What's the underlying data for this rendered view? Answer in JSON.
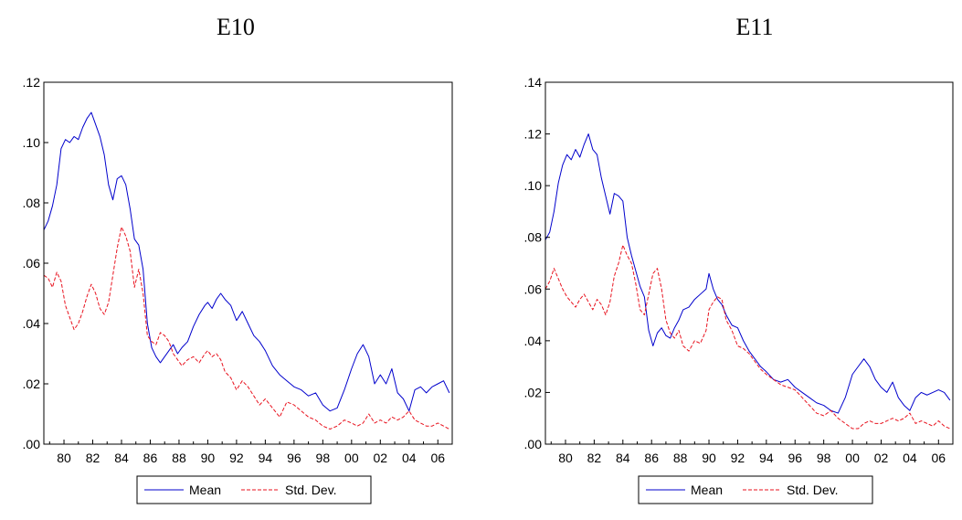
{
  "colors": {
    "mean": "#0000cc",
    "std": "#e8121e",
    "axis": "#000000",
    "background": "#ffffff"
  },
  "chart_data": [
    {
      "type": "line",
      "title": "E10",
      "xlabel": "",
      "ylabel": "",
      "xlim": [
        1978.6,
        2007.0
      ],
      "ylim": [
        0.0,
        0.12
      ],
      "yticks": [
        0.0,
        0.02,
        0.04,
        0.06,
        0.08,
        0.1,
        0.12
      ],
      "ytick_labels": [
        ".00",
        ".02",
        ".04",
        ".06",
        ".08",
        ".10",
        ".12"
      ],
      "xticks": [
        1980,
        1982,
        1984,
        1986,
        1988,
        1990,
        1992,
        1994,
        1996,
        1998,
        2000,
        2002,
        2004,
        2006
      ],
      "xtick_labels": [
        "80",
        "82",
        "84",
        "86",
        "88",
        "90",
        "92",
        "94",
        "96",
        "98",
        "00",
        "02",
        "04",
        "06"
      ],
      "grid": false,
      "legend_position": "bottom-center",
      "series": [
        {
          "name": "Mean",
          "style": "solid",
          "x": [
            1978.6,
            1978.9,
            1979.2,
            1979.5,
            1979.8,
            1980.1,
            1980.4,
            1980.7,
            1981.0,
            1981.3,
            1981.6,
            1981.9,
            1982.2,
            1982.5,
            1982.8,
            1983.1,
            1983.4,
            1983.7,
            1984.0,
            1984.3,
            1984.6,
            1984.9,
            1985.2,
            1985.5,
            1985.8,
            1986.1,
            1986.4,
            1986.7,
            1987.0,
            1987.3,
            1987.6,
            1987.9,
            1988.2,
            1988.6,
            1989.0,
            1989.4,
            1989.8,
            1990.0,
            1990.3,
            1990.6,
            1990.9,
            1991.2,
            1991.6,
            1992.0,
            1992.4,
            1992.8,
            1993.2,
            1993.6,
            1994.0,
            1994.5,
            1995.0,
            1995.5,
            1996.0,
            1996.5,
            1997.0,
            1997.5,
            1998.0,
            1998.5,
            1999.0,
            1999.5,
            2000.0,
            2000.4,
            2000.8,
            2001.2,
            2001.6,
            2002.0,
            2002.4,
            2002.8,
            2003.2,
            2003.6,
            2004.0,
            2004.4,
            2004.8,
            2005.2,
            2005.6,
            2006.0,
            2006.4,
            2006.8
          ],
          "values": [
            0.071,
            0.074,
            0.079,
            0.086,
            0.098,
            0.101,
            0.1,
            0.102,
            0.101,
            0.105,
            0.108,
            0.11,
            0.106,
            0.102,
            0.096,
            0.086,
            0.081,
            0.088,
            0.089,
            0.086,
            0.078,
            0.068,
            0.066,
            0.058,
            0.04,
            0.032,
            0.029,
            0.027,
            0.029,
            0.031,
            0.033,
            0.03,
            0.032,
            0.034,
            0.039,
            0.043,
            0.046,
            0.047,
            0.045,
            0.048,
            0.05,
            0.048,
            0.046,
            0.041,
            0.044,
            0.04,
            0.036,
            0.034,
            0.031,
            0.026,
            0.023,
            0.021,
            0.019,
            0.018,
            0.016,
            0.017,
            0.013,
            0.011,
            0.012,
            0.018,
            0.025,
            0.03,
            0.033,
            0.029,
            0.02,
            0.023,
            0.02,
            0.025,
            0.017,
            0.015,
            0.011,
            0.018,
            0.019,
            0.017,
            0.019,
            0.02,
            0.021,
            0.017
          ]
        },
        {
          "name": "Std. Dev.",
          "style": "dashed",
          "x": [
            1978.6,
            1978.9,
            1979.2,
            1979.5,
            1979.8,
            1980.1,
            1980.4,
            1980.7,
            1981.0,
            1981.3,
            1981.6,
            1981.9,
            1982.2,
            1982.5,
            1982.8,
            1983.1,
            1983.4,
            1983.7,
            1984.0,
            1984.3,
            1984.6,
            1984.9,
            1985.2,
            1985.5,
            1985.8,
            1986.1,
            1986.4,
            1986.7,
            1987.0,
            1987.3,
            1987.6,
            1987.9,
            1988.2,
            1988.6,
            1989.0,
            1989.4,
            1989.8,
            1990.0,
            1990.3,
            1990.6,
            1990.9,
            1991.2,
            1991.6,
            1992.0,
            1992.4,
            1992.8,
            1993.2,
            1993.6,
            1994.0,
            1994.5,
            1995.0,
            1995.5,
            1996.0,
            1996.5,
            1997.0,
            1997.5,
            1998.0,
            1998.5,
            1999.0,
            1999.5,
            2000.0,
            2000.4,
            2000.8,
            2001.2,
            2001.6,
            2002.0,
            2002.4,
            2002.8,
            2003.2,
            2003.6,
            2004.0,
            2004.4,
            2004.8,
            2005.2,
            2005.6,
            2006.0,
            2006.4,
            2006.8
          ],
          "values": [
            0.056,
            0.055,
            0.052,
            0.057,
            0.054,
            0.046,
            0.042,
            0.038,
            0.04,
            0.044,
            0.049,
            0.053,
            0.05,
            0.045,
            0.043,
            0.047,
            0.056,
            0.065,
            0.072,
            0.069,
            0.064,
            0.052,
            0.058,
            0.05,
            0.036,
            0.034,
            0.033,
            0.037,
            0.036,
            0.034,
            0.03,
            0.028,
            0.026,
            0.028,
            0.029,
            0.027,
            0.03,
            0.031,
            0.029,
            0.03,
            0.028,
            0.024,
            0.022,
            0.018,
            0.021,
            0.019,
            0.016,
            0.013,
            0.015,
            0.012,
            0.009,
            0.014,
            0.013,
            0.011,
            0.009,
            0.008,
            0.006,
            0.005,
            0.006,
            0.008,
            0.007,
            0.006,
            0.007,
            0.01,
            0.007,
            0.008,
            0.007,
            0.009,
            0.008,
            0.009,
            0.011,
            0.008,
            0.007,
            0.006,
            0.006,
            0.007,
            0.006,
            0.005
          ]
        }
      ]
    },
    {
      "type": "line",
      "title": "E11",
      "xlabel": "",
      "ylabel": "",
      "xlim": [
        1978.6,
        2007.0
      ],
      "ylim": [
        0.0,
        0.14
      ],
      "yticks": [
        0.0,
        0.02,
        0.04,
        0.06,
        0.08,
        0.1,
        0.12,
        0.14
      ],
      "ytick_labels": [
        ".00",
        ".02",
        ".04",
        ".06",
        ".08",
        ".10",
        ".12",
        ".14"
      ],
      "xticks": [
        1980,
        1982,
        1984,
        1986,
        1988,
        1990,
        1992,
        1994,
        1996,
        1998,
        2000,
        2002,
        2004,
        2006
      ],
      "xtick_labels": [
        "80",
        "82",
        "84",
        "86",
        "88",
        "90",
        "92",
        "94",
        "96",
        "98",
        "00",
        "02",
        "04",
        "06"
      ],
      "grid": false,
      "legend_position": "bottom-center",
      "series": [
        {
          "name": "Mean",
          "style": "solid",
          "x": [
            1978.6,
            1978.9,
            1979.2,
            1979.5,
            1979.8,
            1980.1,
            1980.4,
            1980.7,
            1981.0,
            1981.3,
            1981.6,
            1981.9,
            1982.2,
            1982.5,
            1982.8,
            1983.1,
            1983.4,
            1983.7,
            1984.0,
            1984.3,
            1984.6,
            1984.9,
            1985.2,
            1985.5,
            1985.8,
            1986.1,
            1986.4,
            1986.7,
            1987.0,
            1987.3,
            1987.6,
            1987.9,
            1988.2,
            1988.6,
            1989.0,
            1989.4,
            1989.8,
            1990.0,
            1990.3,
            1990.6,
            1990.9,
            1991.2,
            1991.6,
            1992.0,
            1992.4,
            1992.8,
            1993.2,
            1993.6,
            1994.0,
            1994.5,
            1995.0,
            1995.5,
            1996.0,
            1996.5,
            1997.0,
            1997.5,
            1998.0,
            1998.5,
            1999.0,
            1999.5,
            2000.0,
            2000.4,
            2000.8,
            2001.2,
            2001.6,
            2002.0,
            2002.4,
            2002.8,
            2003.2,
            2003.6,
            2004.0,
            2004.4,
            2004.8,
            2005.2,
            2005.6,
            2006.0,
            2006.4,
            2006.8
          ],
          "values": [
            0.079,
            0.082,
            0.09,
            0.101,
            0.108,
            0.112,
            0.11,
            0.114,
            0.111,
            0.116,
            0.12,
            0.114,
            0.112,
            0.103,
            0.096,
            0.089,
            0.097,
            0.096,
            0.094,
            0.08,
            0.073,
            0.067,
            0.061,
            0.057,
            0.044,
            0.038,
            0.043,
            0.045,
            0.042,
            0.041,
            0.045,
            0.048,
            0.052,
            0.053,
            0.056,
            0.058,
            0.06,
            0.066,
            0.06,
            0.056,
            0.054,
            0.05,
            0.046,
            0.045,
            0.04,
            0.036,
            0.033,
            0.03,
            0.028,
            0.025,
            0.024,
            0.025,
            0.022,
            0.02,
            0.018,
            0.016,
            0.015,
            0.013,
            0.012,
            0.018,
            0.027,
            0.03,
            0.033,
            0.03,
            0.025,
            0.022,
            0.02,
            0.024,
            0.018,
            0.015,
            0.013,
            0.018,
            0.02,
            0.019,
            0.02,
            0.021,
            0.02,
            0.017
          ]
        },
        {
          "name": "Std. Dev.",
          "style": "dashed",
          "x": [
            1978.6,
            1978.9,
            1979.2,
            1979.5,
            1979.8,
            1980.1,
            1980.4,
            1980.7,
            1981.0,
            1981.3,
            1981.6,
            1981.9,
            1982.2,
            1982.5,
            1982.8,
            1983.1,
            1983.4,
            1983.7,
            1984.0,
            1984.3,
            1984.6,
            1984.9,
            1985.2,
            1985.5,
            1985.8,
            1986.1,
            1986.4,
            1986.7,
            1987.0,
            1987.3,
            1987.6,
            1987.9,
            1988.2,
            1988.6,
            1989.0,
            1989.4,
            1989.8,
            1990.0,
            1990.3,
            1990.6,
            1990.9,
            1991.2,
            1991.6,
            1992.0,
            1992.4,
            1992.8,
            1993.2,
            1993.6,
            1994.0,
            1994.5,
            1995.0,
            1995.5,
            1996.0,
            1996.5,
            1997.0,
            1997.5,
            1998.0,
            1998.5,
            1999.0,
            1999.5,
            2000.0,
            2000.4,
            2000.8,
            2001.2,
            2001.6,
            2002.0,
            2002.4,
            2002.8,
            2003.2,
            2003.6,
            2004.0,
            2004.4,
            2004.8,
            2005.2,
            2005.6,
            2006.0,
            2006.4,
            2006.8
          ],
          "values": [
            0.06,
            0.063,
            0.068,
            0.064,
            0.06,
            0.057,
            0.055,
            0.053,
            0.056,
            0.058,
            0.055,
            0.052,
            0.056,
            0.054,
            0.05,
            0.055,
            0.065,
            0.07,
            0.077,
            0.073,
            0.07,
            0.062,
            0.052,
            0.05,
            0.058,
            0.066,
            0.068,
            0.06,
            0.048,
            0.043,
            0.041,
            0.044,
            0.038,
            0.036,
            0.04,
            0.039,
            0.044,
            0.052,
            0.055,
            0.057,
            0.056,
            0.048,
            0.044,
            0.038,
            0.037,
            0.035,
            0.032,
            0.029,
            0.027,
            0.025,
            0.023,
            0.022,
            0.021,
            0.018,
            0.015,
            0.012,
            0.011,
            0.013,
            0.01,
            0.008,
            0.006,
            0.006,
            0.008,
            0.009,
            0.008,
            0.008,
            0.009,
            0.01,
            0.009,
            0.01,
            0.012,
            0.008,
            0.009,
            0.008,
            0.007,
            0.009,
            0.007,
            0.006
          ]
        }
      ]
    }
  ]
}
